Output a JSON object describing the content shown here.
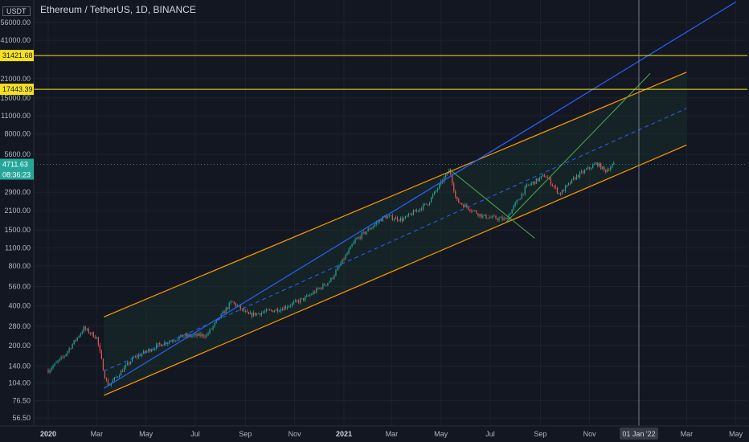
{
  "header": {
    "title": "Ethereum / TetherUS, 1D, BINANCE",
    "currency_tag": "USDT"
  },
  "price_labels": {
    "level_high": "31421.68",
    "level_low": "17443.39",
    "current_price": "4711.63",
    "countdown": "08:36:23",
    "crosshair_date": "01 Jan '22"
  },
  "colors": {
    "background": "#131722",
    "candle_up": "#26a69a",
    "candle_down": "#ef5350",
    "channel_orange": "#ff9800",
    "trend_blue": "#2962ff",
    "fan_green": "#4caf50",
    "level_yellow": "#f7e11e"
  },
  "chart_data": {
    "type": "candlestick",
    "title": "Ethereum / TetherUS, 1D, BINANCE",
    "y_scale": "log",
    "y_ticks": [
      56.5,
      76.5,
      104.0,
      140.0,
      200.0,
      280.0,
      400.0,
      560.0,
      800.0,
      1100.0,
      1500.0,
      2100.0,
      2900.0,
      5600.0,
      8000.0,
      11000.0,
      15000.0,
      21000.0,
      41000.0,
      56000.0
    ],
    "x_ticks": [
      "2020",
      "Mar",
      "May",
      "Jul",
      "Sep",
      "Nov",
      "2021",
      "Mar",
      "May",
      "Jul",
      "Sep",
      "Nov",
      "Mar",
      "May"
    ],
    "price_path": [
      {
        "date": "2020-01-01",
        "price": 130
      },
      {
        "date": "2020-01-20",
        "price": 165
      },
      {
        "date": "2020-02-14",
        "price": 270
      },
      {
        "date": "2020-03-01",
        "price": 230
      },
      {
        "date": "2020-03-12",
        "price": 110
      },
      {
        "date": "2020-03-16",
        "price": 100
      },
      {
        "date": "2020-04-15",
        "price": 160
      },
      {
        "date": "2020-05-15",
        "price": 200
      },
      {
        "date": "2020-06-15",
        "price": 235
      },
      {
        "date": "2020-07-15",
        "price": 240
      },
      {
        "date": "2020-08-15",
        "price": 430
      },
      {
        "date": "2020-09-05",
        "price": 340
      },
      {
        "date": "2020-10-15",
        "price": 380
      },
      {
        "date": "2020-11-15",
        "price": 460
      },
      {
        "date": "2020-12-15",
        "price": 620
      },
      {
        "date": "2021-01-15",
        "price": 1250
      },
      {
        "date": "2021-02-20",
        "price": 1900
      },
      {
        "date": "2021-03-15",
        "price": 1800
      },
      {
        "date": "2021-04-15",
        "price": 2400
      },
      {
        "date": "2021-05-12",
        "price": 4300
      },
      {
        "date": "2021-05-20",
        "price": 2500
      },
      {
        "date": "2021-06-22",
        "price": 1900
      },
      {
        "date": "2021-07-20",
        "price": 1800
      },
      {
        "date": "2021-08-15",
        "price": 3200
      },
      {
        "date": "2021-09-07",
        "price": 3900
      },
      {
        "date": "2021-09-25",
        "price": 2800
      },
      {
        "date": "2021-10-15",
        "price": 3800
      },
      {
        "date": "2021-11-10",
        "price": 4800
      },
      {
        "date": "2021-11-20",
        "price": 4200
      },
      {
        "date": "2021-12-01",
        "price": 4700
      }
    ],
    "horizontal_levels": [
      31421.68,
      17443.39
    ],
    "channel": {
      "upper": [
        {
          "date": "2020-03-10",
          "price": 330
        },
        {
          "date": "2022-03-01",
          "price": 23500
        }
      ],
      "middle": [
        {
          "date": "2020-03-10",
          "price": 128
        },
        {
          "date": "2022-03-01",
          "price": 12500
        }
      ],
      "lower": [
        {
          "date": "2020-03-10",
          "price": 84
        },
        {
          "date": "2022-03-01",
          "price": 6600
        }
      ]
    },
    "trendline_blue": [
      {
        "date": "2020-03-10",
        "price": 95
      },
      {
        "date": "2022-05-01",
        "price": 80000
      }
    ],
    "green_lines": [
      [
        {
          "date": "2021-05-12",
          "price": 4300
        },
        {
          "date": "2021-08-25",
          "price": 1300
        }
      ],
      [
        {
          "date": "2021-07-20",
          "price": 1700
        },
        {
          "date": "2022-01-15",
          "price": 23000
        }
      ]
    ],
    "current_price": 4711.63,
    "crosshair_date": "2022-01-01"
  }
}
